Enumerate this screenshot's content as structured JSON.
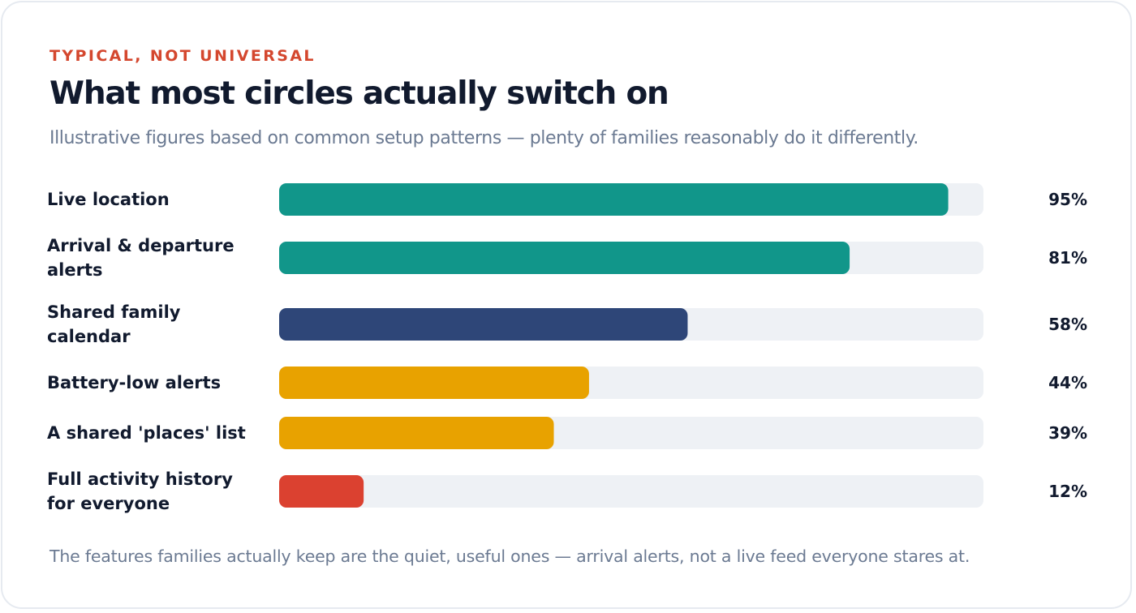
{
  "header": {
    "eyebrow": "TYPICAL, NOT UNIVERSAL",
    "title": "What most circles actually switch on",
    "subtitle": "Illustrative figures based on common setup patterns — plenty of families reasonably do it differently."
  },
  "footnote": "The features families actually keep are the quiet, useful ones — arrival alerts, not a live feed everyone stares at.",
  "colors": {
    "track": "#eef1f5",
    "teal": "#11968a",
    "navy": "#2e4678",
    "amber": "#e8a200",
    "red": "#db4130"
  },
  "chart_data": {
    "type": "bar",
    "orientation": "horizontal",
    "xlim": [
      0,
      100
    ],
    "unit": "%",
    "categories": [
      "Live location",
      "Arrival & departure alerts",
      "Shared family calendar",
      "Battery-low alerts",
      "A shared 'places' list",
      "Full activity history for everyone"
    ],
    "values": [
      95,
      81,
      58,
      44,
      39,
      12
    ],
    "value_labels": [
      "95%",
      "81%",
      "58%",
      "44%",
      "39%",
      "12%"
    ],
    "bar_colors": [
      "#11968a",
      "#11968a",
      "#2e4678",
      "#e8a200",
      "#e8a200",
      "#db4130"
    ],
    "grid": false,
    "legend": "none"
  }
}
